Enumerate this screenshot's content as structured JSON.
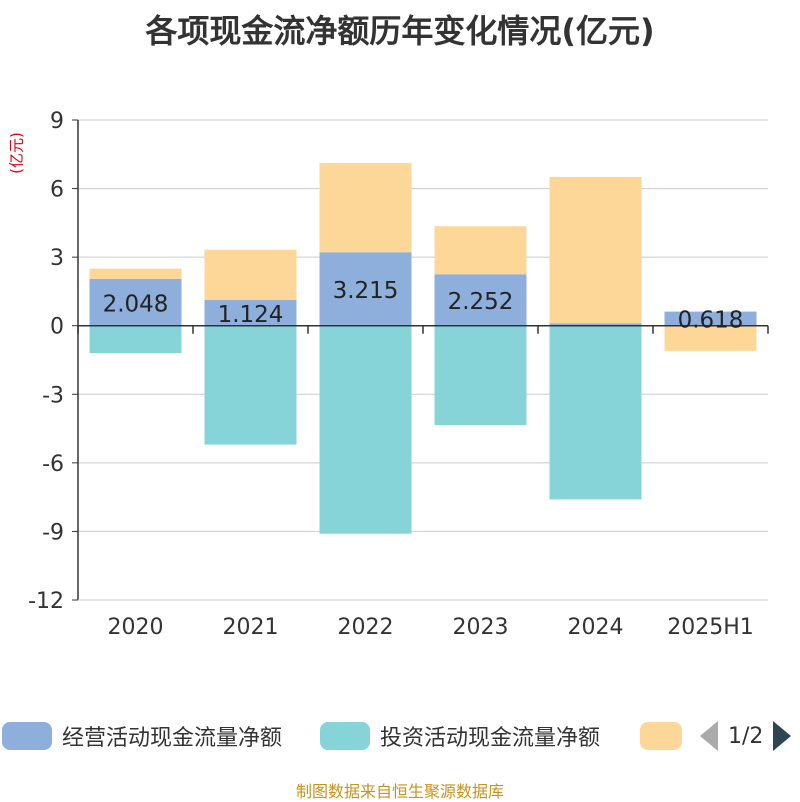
{
  "title": "各项现金流净额历年变化情况(亿元)",
  "unit_label": "(亿元)",
  "source": "制图数据来自恒生聚源数据库",
  "legend": {
    "items": [
      {
        "label": "经营活动现金流量净额",
        "color": "#8eaedb"
      },
      {
        "label": "投资活动现金流量净额",
        "color": "#86d4d8"
      },
      {
        "label": "",
        "color": "#fdd797"
      }
    ],
    "page": "1/2"
  },
  "chart_data": {
    "type": "bar",
    "stacked": true,
    "categories": [
      "2020",
      "2021",
      "2022",
      "2023",
      "2024",
      "2025H1"
    ],
    "ylim": [
      -12,
      9
    ],
    "yticks": [
      -12,
      -9,
      -6,
      -3,
      0,
      3,
      6,
      9
    ],
    "grid": true,
    "series": [
      {
        "name": "经营活动现金流量净额",
        "color": "#8eaedb",
        "values": [
          2.048,
          1.124,
          3.215,
          2.252,
          0.11,
          0.618
        ],
        "labels": [
          "2.048",
          "1.124",
          "3.215",
          "2.252",
          "",
          "0.618"
        ]
      },
      {
        "name": "投资活动现金流量净额",
        "color": "#86d4d8",
        "values": [
          -1.2,
          -5.2,
          -9.1,
          -4.35,
          -7.6,
          0
        ]
      },
      {
        "name": "",
        "color": "#fdd797",
        "values": [
          0.45,
          2.2,
          3.9,
          2.1,
          6.4,
          -1.1
        ]
      }
    ]
  }
}
